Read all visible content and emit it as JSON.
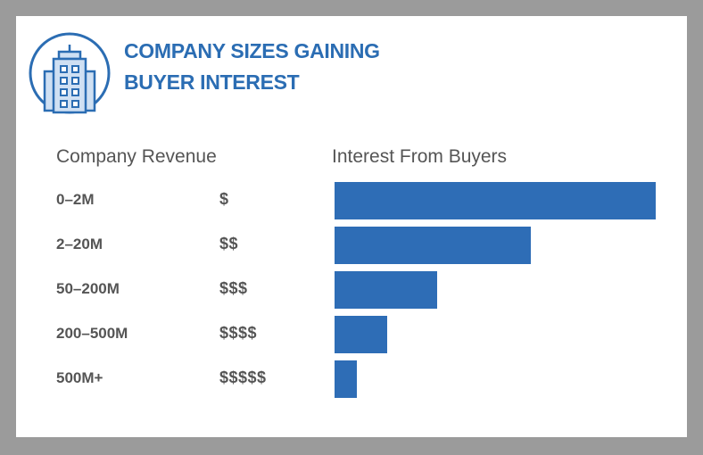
{
  "header": {
    "title_line1": "COMPANY SIZES GAINING",
    "title_line2": "BUYER INTEREST",
    "icon": "office-building-icon"
  },
  "columns": {
    "revenue": "Company Revenue",
    "interest": "Interest From Buyers"
  },
  "colors": {
    "accent": "#2b6db3",
    "bar": "#2e6db6",
    "icon_fill": "#cfe0f3",
    "text": "#555555",
    "frame": "#9b9b9b"
  },
  "chart_data": {
    "type": "bar",
    "orientation": "horizontal",
    "title": "COMPANY SIZES GAINING BUYER INTEREST",
    "categories": [
      "0–2M",
      "2–20M",
      "50–200M",
      "200–500M",
      "500M+"
    ],
    "cost_labels": [
      "$",
      "$$",
      "$$$",
      "$$$$",
      "$$$$$"
    ],
    "values": [
      100,
      61,
      32,
      16.5,
      7
    ],
    "xlabel": "Interest From Buyers",
    "ylabel": "Company Revenue",
    "xlim": [
      0,
      100
    ],
    "grid": false,
    "legend": "none"
  }
}
